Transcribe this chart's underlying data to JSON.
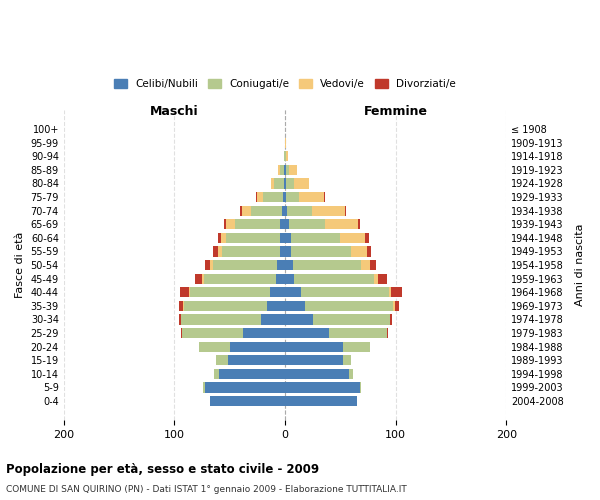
{
  "age_groups": [
    "100+",
    "95-99",
    "90-94",
    "85-89",
    "80-84",
    "75-79",
    "70-74",
    "65-69",
    "60-64",
    "55-59",
    "50-54",
    "45-49",
    "40-44",
    "35-39",
    "30-34",
    "25-29",
    "20-24",
    "15-19",
    "10-14",
    "5-9",
    "0-4"
  ],
  "birth_years": [
    "≤ 1908",
    "1909-1913",
    "1914-1918",
    "1919-1923",
    "1924-1928",
    "1929-1933",
    "1934-1938",
    "1939-1943",
    "1944-1948",
    "1949-1953",
    "1954-1958",
    "1959-1963",
    "1964-1968",
    "1969-1973",
    "1974-1978",
    "1979-1983",
    "1984-1988",
    "1989-1993",
    "1994-1998",
    "1999-2003",
    "2004-2008"
  ],
  "colors": {
    "celibi": "#4A7EB5",
    "coniugati": "#B5C98E",
    "vedovi": "#F5C97A",
    "divorziati": "#C0392B"
  },
  "males": {
    "celibi": [
      0,
      0,
      0,
      1,
      1,
      2,
      3,
      5,
      5,
      5,
      7,
      8,
      14,
      16,
      22,
      38,
      50,
      52,
      60,
      72,
      68
    ],
    "coniugati": [
      0,
      0,
      1,
      4,
      9,
      18,
      28,
      40,
      48,
      52,
      58,
      65,
      72,
      75,
      72,
      55,
      28,
      10,
      4,
      2,
      0
    ],
    "vedovi": [
      0,
      0,
      0,
      1,
      3,
      5,
      8,
      8,
      5,
      4,
      3,
      2,
      1,
      1,
      0,
      0,
      0,
      0,
      0,
      0,
      0
    ],
    "divorziati": [
      0,
      0,
      0,
      0,
      0,
      1,
      2,
      2,
      3,
      4,
      4,
      6,
      8,
      4,
      2,
      1,
      0,
      0,
      0,
      0,
      0
    ]
  },
  "females": {
    "nubili": [
      0,
      0,
      0,
      1,
      1,
      1,
      2,
      4,
      5,
      5,
      7,
      8,
      14,
      18,
      25,
      40,
      52,
      52,
      58,
      68,
      65
    ],
    "coniugate": [
      0,
      0,
      1,
      3,
      7,
      12,
      22,
      32,
      45,
      55,
      62,
      72,
      80,
      80,
      70,
      52,
      25,
      8,
      3,
      1,
      0
    ],
    "vedove": [
      0,
      1,
      2,
      7,
      14,
      22,
      30,
      30,
      22,
      14,
      8,
      4,
      2,
      1,
      0,
      0,
      0,
      0,
      0,
      0,
      0
    ],
    "divorziate": [
      0,
      0,
      0,
      0,
      0,
      1,
      1,
      2,
      4,
      4,
      5,
      8,
      10,
      4,
      2,
      1,
      0,
      0,
      0,
      0,
      0
    ]
  },
  "title": "Popolazione per età, sesso e stato civile - 2009",
  "subtitle": "COMUNE DI SAN QUIRINO (PN) - Dati ISTAT 1° gennaio 2009 - Elaborazione TUTTITALIA.IT",
  "xlabel_left": "Maschi",
  "xlabel_right": "Femmine",
  "ylabel_left": "Fasce di età",
  "ylabel_right": "Anni di nascita",
  "xlim": 200,
  "xticks": [
    -200,
    -100,
    0,
    100,
    200
  ],
  "xticklabels": [
    "200",
    "100",
    "0",
    "100",
    "200"
  ],
  "legend_labels": [
    "Celibi/Nubili",
    "Coniugati/e",
    "Vedovi/e",
    "Divorziati/e"
  ],
  "background_color": "#FFFFFF"
}
